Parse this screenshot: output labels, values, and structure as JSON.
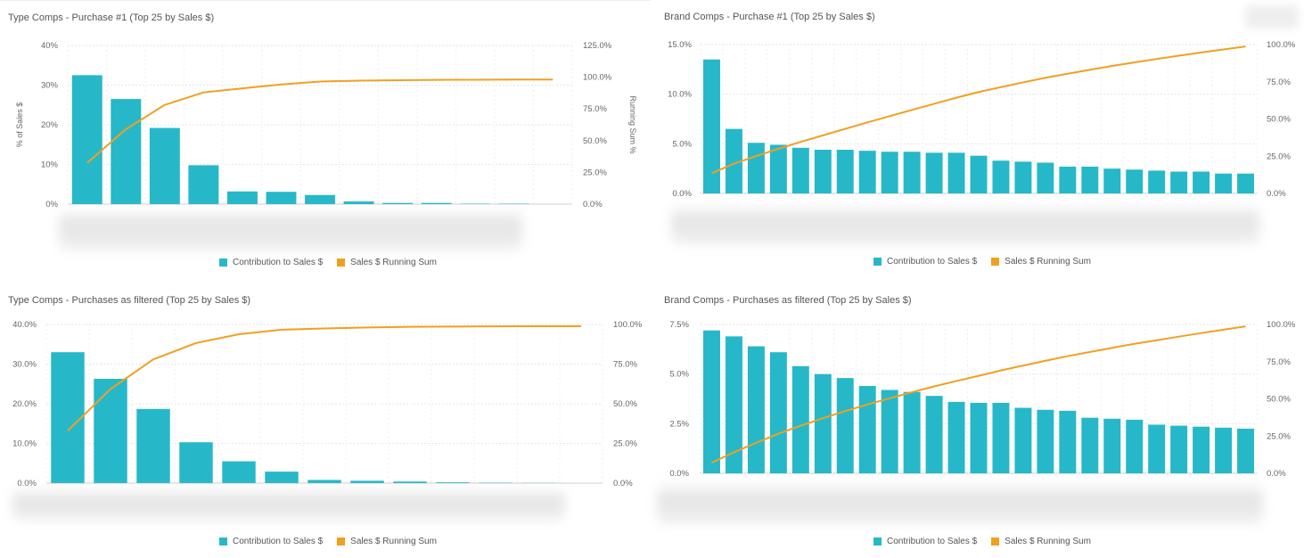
{
  "colors": {
    "bar": "#26b8c9",
    "line": "#f0a020",
    "grid": "#e6e6e6",
    "axis": "#cfcfcf"
  },
  "legend": {
    "bar_label": "Contribution to Sales $",
    "line_label": "Sales $ Running Sum"
  },
  "chart_data": [
    {
      "type": "bar",
      "title": "Type Comps - Purchase #1 (Top 25 by Sales $)",
      "ylabel": "% of Sales $",
      "y2label": "Running Sum %",
      "yticks": [
        "0%",
        "10%",
        "20%",
        "30%",
        "40%"
      ],
      "ylim": [
        0,
        40
      ],
      "y2ticks": [
        "0.0%",
        "25.0%",
        "50.0%",
        "75.0%",
        "100.0%",
        "125.0%"
      ],
      "y2lim": [
        0,
        125
      ],
      "categories": [
        "",
        "",
        "",
        "",
        "",
        "",
        "",
        "",
        "",
        "",
        "",
        "",
        ""
      ],
      "series": [
        {
          "name": "Contribution to Sales $",
          "kind": "bar",
          "values": [
            32.5,
            26.5,
            19.2,
            9.8,
            3.2,
            3.1,
            2.3,
            0.7,
            0.3,
            0.3,
            0.1,
            0.1,
            0.0
          ]
        },
        {
          "name": "Sales $ Running Sum",
          "kind": "line",
          "values": [
            32.5,
            59,
            78.2,
            88,
            91.2,
            94.3,
            96.6,
            97.3,
            97.6,
            97.9,
            98.0,
            98.1,
            98.1
          ]
        }
      ]
    },
    {
      "type": "bar",
      "title": "Brand Comps - Purchase #1 (Top 25 by Sales $)",
      "ylabel": "",
      "y2label": "",
      "yticks": [
        "0.0%",
        "5.0%",
        "10.0%",
        "15.0%"
      ],
      "ylim": [
        0,
        15
      ],
      "y2ticks": [
        "0.0%",
        "25.0%",
        "50.0%",
        "75.0%",
        "100.0%"
      ],
      "y2lim": [
        0,
        100
      ],
      "categories": [
        "",
        "",
        "",
        "",
        "",
        "",
        "",
        "",
        "",
        "",
        "",
        "",
        "",
        "",
        "",
        "",
        "",
        "",
        "",
        "",
        "",
        "",
        "",
        "",
        ""
      ],
      "series": [
        {
          "name": "Contribution to Sales $",
          "kind": "bar",
          "values": [
            13.5,
            6.5,
            5.1,
            4.9,
            4.6,
            4.4,
            4.4,
            4.3,
            4.2,
            4.2,
            4.1,
            4.1,
            3.8,
            3.3,
            3.2,
            3.1,
            2.7,
            2.7,
            2.5,
            2.4,
            2.3,
            2.2,
            2.2,
            2.0,
            2.0
          ]
        },
        {
          "name": "Sales $ Running Sum",
          "kind": "line",
          "values": [
            13.5,
            20,
            25.1,
            30,
            34.6,
            39,
            43.4,
            47.7,
            51.9,
            56.1,
            60.2,
            64.3,
            68.1,
            71.4,
            74.6,
            77.7,
            80.4,
            83.1,
            85.6,
            88.0,
            90.3,
            92.5,
            94.7,
            96.7,
            98.7
          ]
        }
      ]
    },
    {
      "type": "bar",
      "title": "Type Comps - Purchases as filtered (Top 25 by Sales $)",
      "ylabel": "",
      "y2label": "",
      "yticks": [
        "0.0%",
        "10.0%",
        "20.0%",
        "30.0%",
        "40.0%"
      ],
      "ylim": [
        0,
        40
      ],
      "y2ticks": [
        "0.0%",
        "25.0%",
        "50.0%",
        "75.0%",
        "100.0%"
      ],
      "y2lim": [
        0,
        100
      ],
      "categories": [
        "",
        "",
        "",
        "",
        "",
        "",
        "",
        "",
        "",
        "",
        "",
        "",
        ""
      ],
      "series": [
        {
          "name": "Contribution to Sales $",
          "kind": "bar",
          "values": [
            33.0,
            26.3,
            18.7,
            10.3,
            5.5,
            2.9,
            0.8,
            0.6,
            0.4,
            0.2,
            0.1,
            0.05,
            0.0
          ]
        },
        {
          "name": "Sales $ Running Sum",
          "kind": "line",
          "values": [
            33.0,
            59.3,
            78.0,
            88.3,
            93.8,
            96.7,
            97.5,
            98.1,
            98.5,
            98.7,
            98.8,
            98.9,
            98.9
          ]
        }
      ]
    },
    {
      "type": "bar",
      "title": "Brand Comps - Purchases as filtered (Top 25 by Sales $)",
      "ylabel": "",
      "y2label": "",
      "yticks": [
        "0.0%",
        "2.5%",
        "5.0%",
        "7.5%"
      ],
      "ylim": [
        0,
        7.5
      ],
      "y2ticks": [
        "0.0%",
        "25.0%",
        "50.0%",
        "75.0%",
        "100.0%"
      ],
      "y2lim": [
        0,
        100
      ],
      "categories": [
        "",
        "",
        "",
        "",
        "",
        "",
        "",
        "",
        "",
        "",
        "",
        "",
        "",
        "",
        "",
        "",
        "",
        "",
        "",
        "",
        "",
        "",
        "",
        "",
        ""
      ],
      "series": [
        {
          "name": "Contribution to Sales $",
          "kind": "bar",
          "values": [
            7.2,
            6.9,
            6.4,
            6.1,
            5.4,
            5.0,
            4.8,
            4.4,
            4.2,
            4.1,
            3.9,
            3.6,
            3.55,
            3.55,
            3.3,
            3.2,
            3.15,
            2.8,
            2.75,
            2.7,
            2.45,
            2.4,
            2.35,
            2.3,
            2.25
          ]
        },
        {
          "name": "Sales $ Running Sum",
          "kind": "line",
          "values": [
            7.2,
            14.1,
            20.5,
            26.6,
            32.0,
            37.0,
            41.8,
            46.2,
            50.4,
            54.5,
            58.4,
            62.0,
            65.5,
            69.1,
            72.4,
            75.6,
            78.7,
            81.5,
            84.3,
            87.0,
            89.4,
            91.8,
            94.2,
            96.5,
            98.7
          ]
        }
      ]
    }
  ]
}
